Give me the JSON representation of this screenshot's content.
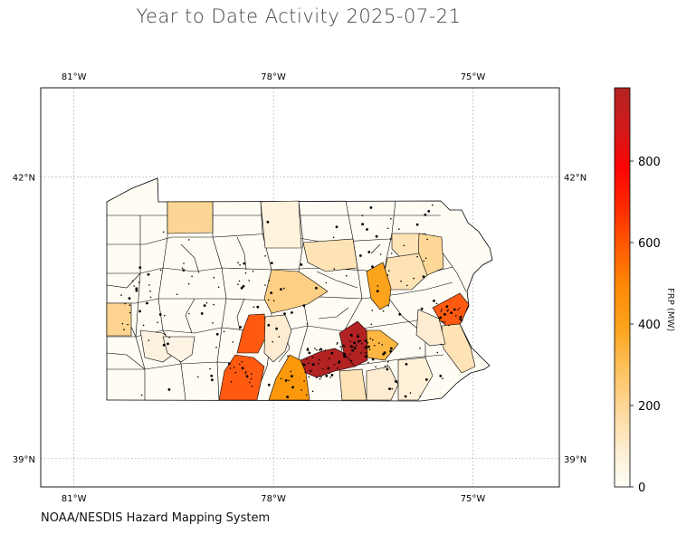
{
  "title": "Year to Date Activity 2025-07-21",
  "source": "NOAA/NESDIS Hazard Mapping System",
  "chart_data": {
    "type": "choropleth",
    "projection": "plate-carree",
    "lon_range": [
      -81.5,
      -73.7
    ],
    "lat_range": [
      38.7,
      42.95
    ],
    "grid": true,
    "lon_ticks": [
      {
        "value": -81,
        "label": "81°W"
      },
      {
        "value": -78,
        "label": "78°W"
      },
      {
        "value": -75,
        "label": "75°W"
      }
    ],
    "lat_ticks": [
      {
        "value": 42,
        "label": "42°N"
      },
      {
        "value": 39,
        "label": "39°N"
      }
    ],
    "colorbar": {
      "label": "FRP (MW)",
      "range": [
        0,
        980
      ],
      "ticks": [
        {
          "value": 0,
          "label": "0"
        },
        {
          "value": 200,
          "label": "200"
        },
        {
          "value": 400,
          "label": "400"
        },
        {
          "value": 600,
          "label": "600"
        },
        {
          "value": 800,
          "label": "800"
        }
      ],
      "colors": [
        "#fffef8",
        "#fde9b9",
        "#fed98b",
        "#fdc05a",
        "#fca21c",
        "#ff7a0c",
        "#ff4300",
        "#ff0000",
        "#e01a1a",
        "#b22222"
      ]
    },
    "boundary_color": "#000000",
    "point_color": "#000000"
  }
}
